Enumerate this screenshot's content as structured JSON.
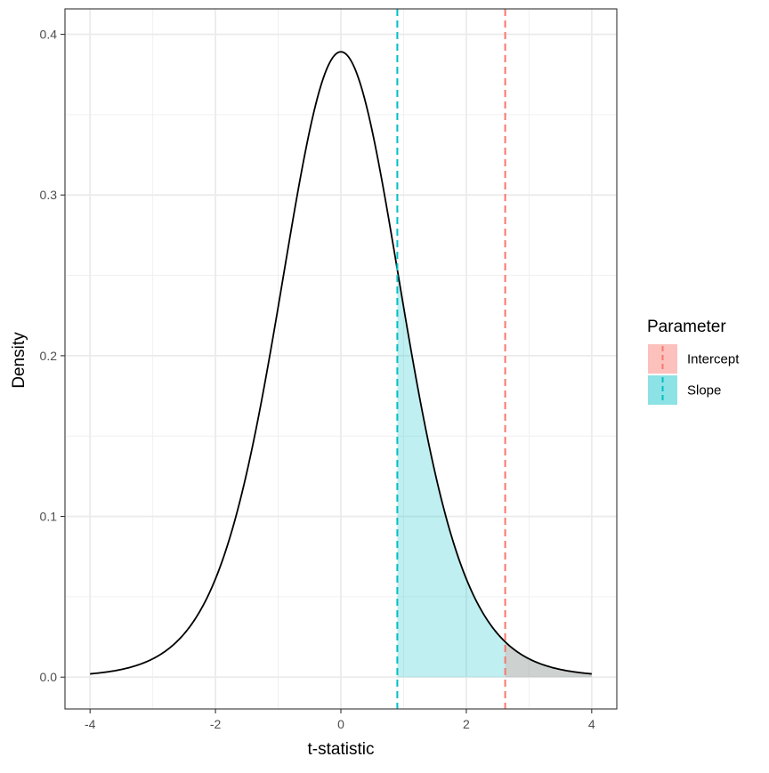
{
  "chart_data": {
    "type": "line",
    "distribution": "t",
    "degrees_of_freedom": 10,
    "curve_x_range": [
      -4,
      4
    ],
    "xlabel": "t-statistic",
    "ylabel": "Density",
    "xlim": [
      -4.4,
      4.4
    ],
    "ylim": [
      -0.0198,
      0.4158
    ],
    "x_ticks": [
      -4,
      -2,
      0,
      2,
      4
    ],
    "x_tick_labels": [
      "-4",
      "-2",
      "0",
      "2",
      "4"
    ],
    "y_ticks": [
      0.0,
      0.1,
      0.2,
      0.3,
      0.4
    ],
    "y_tick_labels": [
      "0.0",
      "0.1",
      "0.2",
      "0.3",
      "0.4"
    ],
    "grid": true,
    "legend": {
      "title": "Parameter",
      "position": "right",
      "entries": [
        {
          "name": "Intercept",
          "color": "#F8766D"
        },
        {
          "name": "Slope",
          "color": "#00BFC4"
        }
      ]
    },
    "series": [
      {
        "name": "Intercept",
        "t_value": 2.62,
        "shade_from": 2.62,
        "shade_to": 4,
        "color": "#F8766D",
        "line_style": "dashed"
      },
      {
        "name": "Slope",
        "t_value": 0.9,
        "shade_from": 0.9,
        "shade_to": 4,
        "color": "#00BFC4",
        "line_style": "dashed"
      }
    ],
    "shade_opacity": 0.25
  }
}
